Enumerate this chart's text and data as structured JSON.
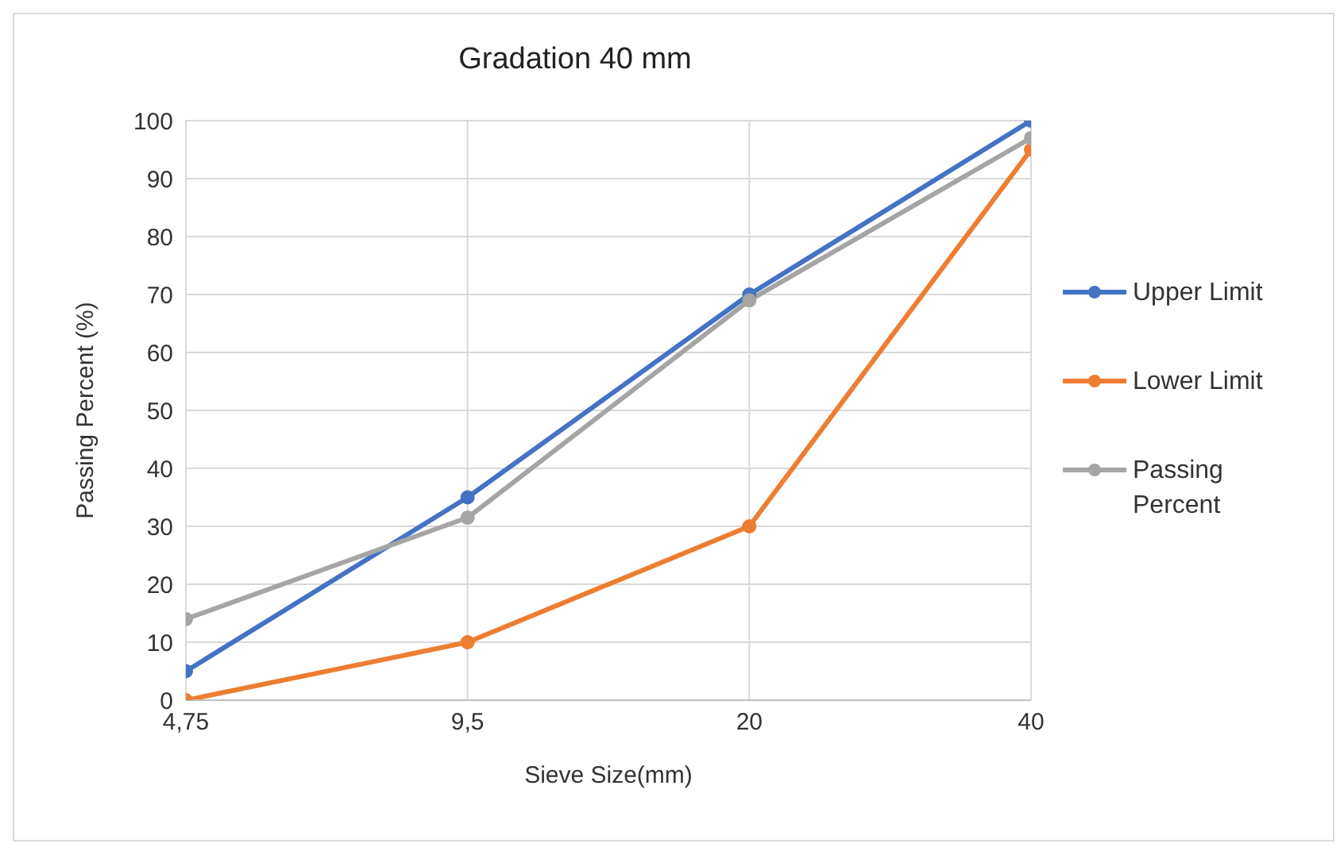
{
  "chart_data": {
    "type": "line",
    "title": "Gradation 40 mm",
    "xlabel": "Sieve Size(mm)",
    "ylabel": "Passing Percent  (%)",
    "categories": [
      "4,75",
      "9,5",
      "20",
      "40"
    ],
    "series": [
      {
        "name": "Upper Limit",
        "color": "#4472c4",
        "values": [
          5,
          35,
          70,
          100
        ]
      },
      {
        "name": "Lower Limit",
        "color": "#ed7d31",
        "values": [
          0,
          10,
          30,
          95
        ]
      },
      {
        "name": "Passing Percent",
        "color": "#a5a5a5",
        "values": [
          14,
          31.5,
          69,
          97
        ]
      }
    ],
    "ylim": [
      0,
      100
    ],
    "yticks": [
      0,
      10,
      20,
      30,
      40,
      50,
      60,
      70,
      80,
      90,
      100
    ],
    "grid": true,
    "legend": "right",
    "marker": "circle",
    "line_style": "solid"
  }
}
